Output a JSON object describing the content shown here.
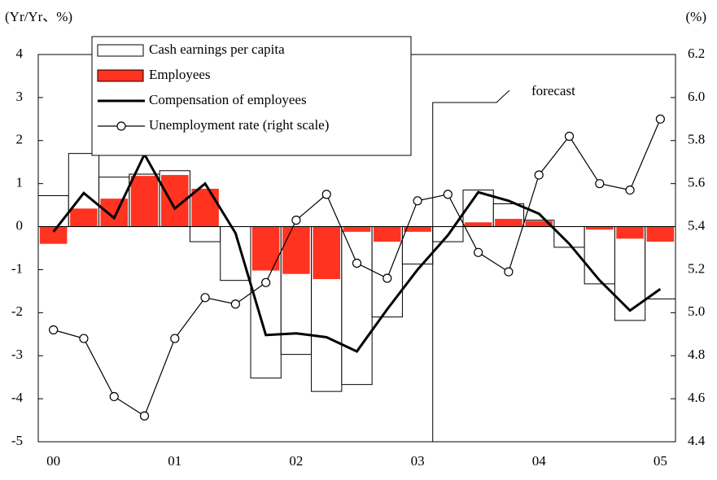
{
  "chart_data": {
    "type": "bar_line",
    "y_label": "(Yr/Yr、%)",
    "y2_label": "(%)",
    "annotation": "forecast",
    "categories": [
      "00",
      null,
      null,
      null,
      "01",
      null,
      null,
      null,
      "02",
      null,
      null,
      null,
      "03",
      null,
      null,
      null,
      "04",
      null,
      null,
      null,
      "05"
    ],
    "series": [
      {
        "name": "Cash earnings per capita",
        "kind": "bar",
        "color": "#ffffff",
        "values": [
          0.72,
          1.7,
          1.15,
          1.22,
          1.3,
          -0.35,
          -1.25,
          -3.52,
          -2.97,
          -3.83,
          -3.67,
          -2.1,
          -0.87,
          -0.35,
          0.85,
          0.53,
          0.15,
          -0.48,
          -1.33,
          -2.18,
          -1.68
        ]
      },
      {
        "name": "Employees",
        "kind": "bar",
        "color": "#ff3320",
        "values": [
          -0.4,
          0.42,
          0.65,
          1.18,
          1.2,
          0.88,
          0,
          -1.02,
          -1.1,
          -1.22,
          -0.12,
          -0.35,
          -0.12,
          0,
          0.1,
          0.18,
          0.13,
          0,
          -0.07,
          -0.28,
          -0.35
        ]
      },
      {
        "name": "Compensation of employees",
        "kind": "line",
        "color": "#000000",
        "values": [
          -0.12,
          0.78,
          0.2,
          1.68,
          0.42,
          1.0,
          -0.15,
          -2.52,
          -2.48,
          -2.57,
          -2.9,
          -1.92,
          -1.0,
          -0.2,
          0.8,
          0.6,
          0.3,
          -0.4,
          -1.25,
          -1.95,
          -1.45
        ]
      },
      {
        "name": "Unemployment rate (right scale)",
        "kind": "marker_line",
        "axis": "y2",
        "color": "#000000",
        "values": [
          4.92,
          4.88,
          4.61,
          4.52,
          4.88,
          5.07,
          5.04,
          5.14,
          5.43,
          5.55,
          5.23,
          5.16,
          5.52,
          5.55,
          5.28,
          5.19,
          5.64,
          5.82,
          5.6,
          5.57,
          5.9
        ]
      }
    ],
    "ylim": [
      -5,
      4
    ],
    "yticks": [
      -5,
      -4,
      -3,
      -2,
      -1,
      0,
      1,
      2,
      3,
      4
    ],
    "y2lim": [
      4.4,
      6.2
    ],
    "y2ticks": [
      4.4,
      4.6,
      4.8,
      {
        "value": 5,
        "label": "5.0"
      },
      5.2,
      5.4,
      5.6,
      5.8,
      {
        "value": 6,
        "label": "6.0"
      },
      6.2
    ],
    "legend": "top-left"
  }
}
